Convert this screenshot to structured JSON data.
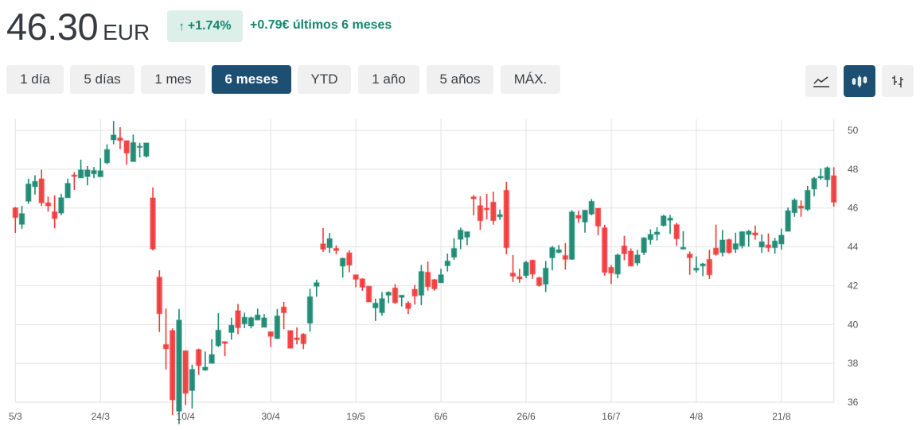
{
  "header": {
    "price": "46.30",
    "currency": "EUR",
    "change_arrow_icon": "arrow-up-icon",
    "change_arrow": "↑",
    "change_pct": "+1.74%",
    "change_text": "+0.79€ últimos 6 meses",
    "positive_color": "#15876e"
  },
  "ranges": [
    {
      "label": "1 día",
      "active": false
    },
    {
      "label": "5 días",
      "active": false
    },
    {
      "label": "1 mes",
      "active": false
    },
    {
      "label": "6 meses",
      "active": true
    },
    {
      "label": "YTD",
      "active": false
    },
    {
      "label": "1 año",
      "active": false
    },
    {
      "label": "5 años",
      "active": false
    },
    {
      "label": "MÁX.",
      "active": false
    }
  ],
  "chart_types": [
    {
      "icon": "line-chart-icon",
      "active": false
    },
    {
      "icon": "candlestick-chart-icon",
      "active": true
    },
    {
      "icon": "ohlc-bar-chart-icon",
      "active": false
    }
  ],
  "chart_data": {
    "type": "candlestick",
    "ylim": [
      36,
      50
    ],
    "y_ticks": [
      36,
      38,
      40,
      42,
      44,
      46,
      48,
      50
    ],
    "y_axis_position": "right",
    "grid": true,
    "up_color": "#1e8a74",
    "down_color": "#f03a3a",
    "x_ticks": [
      {
        "label": "5/3",
        "candle": 0
      },
      {
        "label": "24/3",
        "candle": 13
      },
      {
        "label": "10/4",
        "candle": 26
      },
      {
        "label": "30/4",
        "candle": 39
      },
      {
        "label": "19/5",
        "candle": 52
      },
      {
        "label": "6/6",
        "candle": 65
      },
      {
        "label": "26/6",
        "candle": 78
      },
      {
        "label": "16/7",
        "candle": 91
      },
      {
        "label": "4/8",
        "candle": 104
      },
      {
        "label": "21/8",
        "candle": 117
      }
    ],
    "ohlc_fields": [
      "open",
      "high",
      "low",
      "close"
    ],
    "candles": [
      [
        46.01,
        46.05,
        44.72,
        45.51
      ],
      [
        45.16,
        46.11,
        44.93,
        45.71
      ],
      [
        46.35,
        47.51,
        46.22,
        47.24
      ],
      [
        47.1,
        47.69,
        46.69,
        47.37
      ],
      [
        47.5,
        47.97,
        46.11,
        46.27
      ],
      [
        46.27,
        46.59,
        45.81,
        46.11
      ],
      [
        45.81,
        46.65,
        44.95,
        45.46
      ],
      [
        45.74,
        46.73,
        45.63,
        46.53
      ],
      [
        46.53,
        47.51,
        46.53,
        47.27
      ],
      [
        47.7,
        47.85,
        46.93,
        47.63
      ],
      [
        47.55,
        48.49,
        47.55,
        47.96
      ],
      [
        47.62,
        48.16,
        47.17,
        47.96
      ],
      [
        47.76,
        48.11,
        47.54,
        47.93
      ],
      [
        47.61,
        48.56,
        47.61,
        47.92
      ],
      [
        48.33,
        49.28,
        48.26,
        49.01
      ],
      [
        49.51,
        50.48,
        49.28,
        49.76
      ],
      [
        49.61,
        50.16,
        49.03,
        49.48
      ],
      [
        49.47,
        49.47,
        48.23,
        48.83
      ],
      [
        48.39,
        49.78,
        48.39,
        49.37
      ],
      [
        49.12,
        49.35,
        48.6,
        49.18
      ],
      [
        48.67,
        49.35,
        48.6,
        49.35
      ],
      [
        46.52,
        47.06,
        43.81,
        43.89
      ],
      [
        42.44,
        42.79,
        39.62,
        40.56
      ],
      [
        38.97,
        40.82,
        37.69,
        38.75
      ],
      [
        39.69,
        39.8,
        35.35,
        36.12
      ],
      [
        35.54,
        40.8,
        34.87,
        40.23
      ],
      [
        38.65,
        38.65,
        35.85,
        36.46
      ],
      [
        36.6,
        37.93,
        35.67,
        37.69
      ],
      [
        38.71,
        38.76,
        37.41,
        37.89
      ],
      [
        37.65,
        38.61,
        37.62,
        37.8
      ],
      [
        38.0,
        39.25,
        38.0,
        38.45
      ],
      [
        38.91,
        40.59,
        38.84,
        39.71
      ],
      [
        39.12,
        39.12,
        38.37,
        39.03
      ],
      [
        39.59,
        40.35,
        39.22,
        39.96
      ],
      [
        40.71,
        41.06,
        39.5,
        39.84
      ],
      [
        40.04,
        40.61,
        39.82,
        40.37
      ],
      [
        39.93,
        40.41,
        39.8,
        40.35
      ],
      [
        40.23,
        40.82,
        40.23,
        40.49
      ],
      [
        39.86,
        40.54,
        39.86,
        40.34
      ],
      [
        39.63,
        39.63,
        38.84,
        39.39
      ],
      [
        39.28,
        40.8,
        39.25,
        40.44
      ],
      [
        40.9,
        41.16,
        39.76,
        40.61
      ],
      [
        39.69,
        39.69,
        38.78,
        38.78
      ],
      [
        39.31,
        39.85,
        38.98,
        39.22
      ],
      [
        39.5,
        39.55,
        38.73,
        39.01
      ],
      [
        40.07,
        41.84,
        39.63,
        41.43
      ],
      [
        41.97,
        42.31,
        41.43,
        42.15
      ],
      [
        44.15,
        44.97,
        43.74,
        43.88
      ],
      [
        43.96,
        44.71,
        43.69,
        44.42
      ],
      [
        43.92,
        44.08,
        43.62,
        43.81
      ],
      [
        43.01,
        43.44,
        42.42,
        43.41
      ],
      [
        43.69,
        43.82,
        42.69,
        43.06
      ],
      [
        42.56,
        42.56,
        41.92,
        42.33
      ],
      [
        42.35,
        42.38,
        41.74,
        41.92
      ],
      [
        41.97,
        41.97,
        41.16,
        41.16
      ],
      [
        40.86,
        41.33,
        40.18,
        41.1
      ],
      [
        40.61,
        41.67,
        40.45,
        41.33
      ],
      [
        41.51,
        41.71,
        41.1,
        41.66
      ],
      [
        41.88,
        42.08,
        41.06,
        41.13
      ],
      [
        41.4,
        41.51,
        40.93,
        41.51
      ],
      [
        41.1,
        41.2,
        40.54,
        40.82
      ],
      [
        41.81,
        42.04,
        41.03,
        41.47
      ],
      [
        41.51,
        43.06,
        41.0,
        42.73
      ],
      [
        42.69,
        43.24,
        41.74,
        41.95
      ],
      [
        42.31,
        42.35,
        41.74,
        41.84
      ],
      [
        42.15,
        42.87,
        42.15,
        42.56
      ],
      [
        43.03,
        43.65,
        42.73,
        43.27
      ],
      [
        43.47,
        44.44,
        43.33,
        43.92
      ],
      [
        44.39,
        44.99,
        43.88,
        44.86
      ],
      [
        44.5,
        44.78,
        44.08,
        44.78
      ],
      [
        46.57,
        46.67,
        45.62,
        46.48
      ],
      [
        46.12,
        46.6,
        44.87,
        45.35
      ],
      [
        45.99,
        46.73,
        45.41,
        45.92
      ],
      [
        46.3,
        46.84,
        45.14,
        45.35
      ],
      [
        45.55,
        45.92,
        45.39,
        45.66
      ],
      [
        46.91,
        47.35,
        43.62,
        43.96
      ],
      [
        42.65,
        43.58,
        42.19,
        42.49
      ],
      [
        42.46,
        42.87,
        42.15,
        42.35
      ],
      [
        42.52,
        43.28,
        42.39,
        43.2
      ],
      [
        43.31,
        43.33,
        42.35,
        42.6
      ],
      [
        42.41,
        42.46,
        41.95,
        42.01
      ],
      [
        42.08,
        43.27,
        41.67,
        42.9
      ],
      [
        43.44,
        44.05,
        42.79,
        43.96
      ],
      [
        43.71,
        44.09,
        43.67,
        43.85
      ],
      [
        43.55,
        44.19,
        42.83,
        43.36
      ],
      [
        43.36,
        45.89,
        43.33,
        45.8
      ],
      [
        45.62,
        45.86,
        45.24,
        45.48
      ],
      [
        45.28,
        45.89,
        44.73,
        45.89
      ],
      [
        45.69,
        46.46,
        45.62,
        46.34
      ],
      [
        45.99,
        45.99,
        44.6,
        45.07
      ],
      [
        44.98,
        45.14,
        42.52,
        42.69
      ],
      [
        42.94,
        43.07,
        42.08,
        42.65
      ],
      [
        42.6,
        43.65,
        42.38,
        43.58
      ],
      [
        44.05,
        44.57,
        43.31,
        43.65
      ],
      [
        43.78,
        43.92,
        43.01,
        43.01
      ],
      [
        43.17,
        43.85,
        43.03,
        43.58
      ],
      [
        43.71,
        44.5,
        43.58,
        44.46
      ],
      [
        44.37,
        44.9,
        44.12,
        44.64
      ],
      [
        44.64,
        45.01,
        44.33,
        44.76
      ],
      [
        45.1,
        45.65,
        45.05,
        45.59
      ],
      [
        45.37,
        45.65,
        44.67,
        45.48
      ],
      [
        45.14,
        45.24,
        44.05,
        44.42
      ],
      [
        43.88,
        44.8,
        43.88,
        43.97
      ],
      [
        43.63,
        43.76,
        42.56,
        43.44
      ],
      [
        42.8,
        43.51,
        42.67,
        42.9
      ],
      [
        43.02,
        43.17,
        42.49,
        43.12
      ],
      [
        43.35,
        43.85,
        42.35,
        42.56
      ],
      [
        43.93,
        45.14,
        43.55,
        43.61
      ],
      [
        43.71,
        44.87,
        43.51,
        44.35
      ],
      [
        44.37,
        44.42,
        43.65,
        43.71
      ],
      [
        43.88,
        44.73,
        43.69,
        44.16
      ],
      [
        44.05,
        44.8,
        43.92,
        44.78
      ],
      [
        44.64,
        44.87,
        44.01,
        44.8
      ],
      [
        44.72,
        45.1,
        44.37,
        44.61
      ],
      [
        43.99,
        44.64,
        43.69,
        44.26
      ],
      [
        44.1,
        44.69,
        43.74,
        43.96
      ],
      [
        43.96,
        44.46,
        43.65,
        44.3
      ],
      [
        44.15,
        44.94,
        43.85,
        44.6
      ],
      [
        44.8,
        46.03,
        44.8,
        45.86
      ],
      [
        45.76,
        46.5,
        45.55,
        46.41
      ],
      [
        46.1,
        46.39,
        45.55,
        45.99
      ],
      [
        45.93,
        47.14,
        45.85,
        46.91
      ],
      [
        46.98,
        47.59,
        46.6,
        47.52
      ],
      [
        47.55,
        48.04,
        47.46,
        47.63
      ],
      [
        47.46,
        48.14,
        47.09,
        48.07
      ],
      [
        47.66,
        48.1,
        46.07,
        46.3
      ]
    ]
  }
}
